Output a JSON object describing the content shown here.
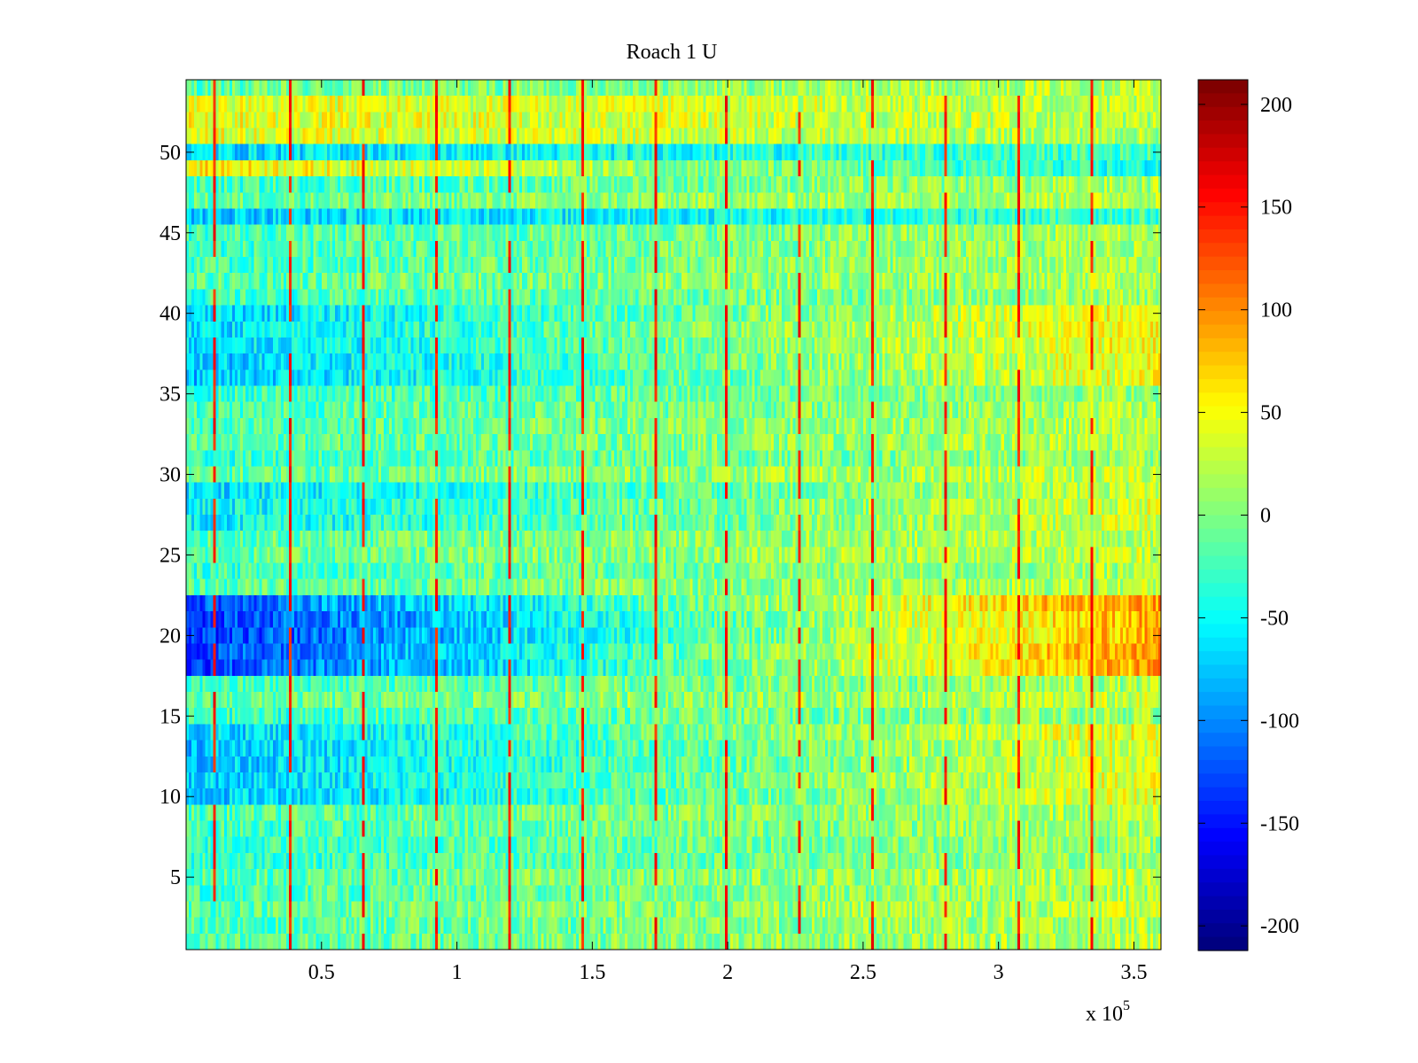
{
  "chart_data": {
    "type": "heatmap",
    "title": "Roach 1 U",
    "xlabel": "",
    "ylabel": "",
    "x_exponent_label": "x 10",
    "x_exponent_power": "5",
    "xlim": [
      0,
      3.6
    ],
    "ylim": [
      0.5,
      54.5
    ],
    "x_ticks": [
      0.5,
      1,
      1.5,
      2,
      2.5,
      3,
      3.5
    ],
    "x_tick_labels": [
      "0.5",
      "1",
      "1.5",
      "2",
      "2.5",
      "3",
      "3.5"
    ],
    "y_ticks": [
      5,
      10,
      15,
      20,
      25,
      30,
      35,
      40,
      45,
      50
    ],
    "y_tick_labels": [
      "5",
      "10",
      "15",
      "20",
      "25",
      "30",
      "35",
      "40",
      "45",
      "50"
    ],
    "n_rows": 54,
    "n_cols": 360,
    "colorbar": {
      "colormap": "jet",
      "range": [
        -212,
        212
      ],
      "ticks": [
        200,
        150,
        100,
        50,
        0,
        -50,
        -100,
        -150,
        -200
      ],
      "tick_labels": [
        "200",
        "150",
        "100",
        "50",
        "0",
        "-50",
        "-100",
        "-150",
        "-200"
      ]
    },
    "spike_columns_x": [
      0.1,
      0.38,
      0.65,
      0.92,
      1.19,
      1.46,
      1.73,
      2.0,
      2.27,
      2.54,
      2.81,
      3.08,
      3.35
    ],
    "trend": {
      "early_mean": -25,
      "late_mean": 20,
      "noise_amplitude": 35,
      "spike_value": 170
    },
    "row_offsets": [
      {
        "rows": [
          1,
          9
        ],
        "offset": 0
      },
      {
        "rows": [
          10,
          14
        ],
        "early": -50,
        "late": 25
      },
      {
        "rows": [
          18,
          22
        ],
        "early": -110,
        "late": 75
      },
      {
        "rows": [
          27,
          29
        ],
        "early": -40,
        "late": 10
      },
      {
        "rows": [
          36,
          40
        ],
        "early": -45,
        "late": 35
      },
      {
        "rows": [
          46,
          46
        ],
        "offset": -45
      },
      {
        "rows": [
          49,
          49
        ],
        "early": 85,
        "late": -70
      },
      {
        "rows": [
          50,
          50
        ],
        "offset": -45
      },
      {
        "rows": [
          51,
          53
        ],
        "early": 70,
        "late": 0
      }
    ]
  }
}
